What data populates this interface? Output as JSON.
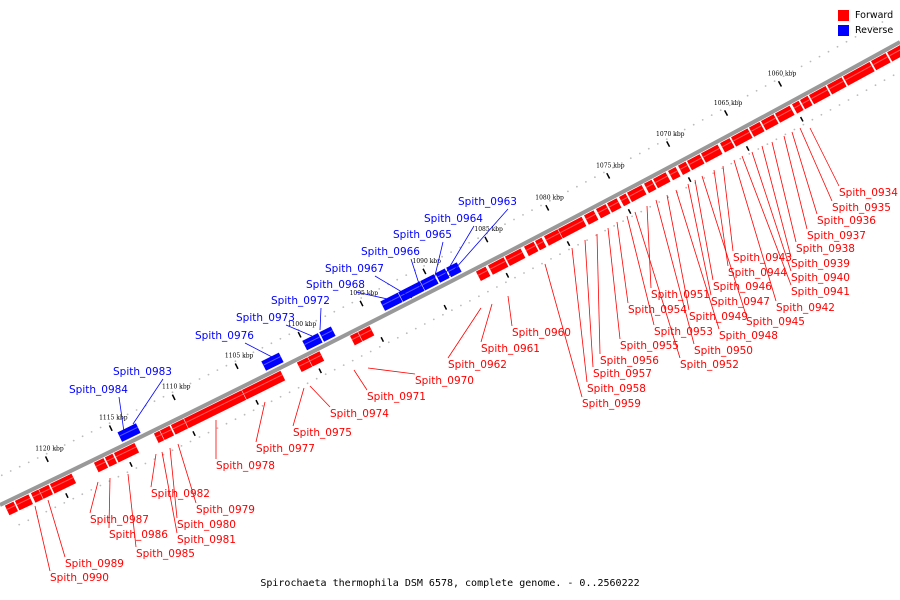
{
  "colors": {
    "forward": "#ff0000",
    "reverse": "#0000ff",
    "backbone": "#999999",
    "tick": "#000000",
    "dot": "#bbbbbb",
    "leader_forward": "#ff0000",
    "leader_reverse": "#0000ff"
  },
  "legend": {
    "forward_label": "Forward",
    "reverse_label": "Reverse"
  },
  "caption": "Spirochaeta thermophila DSM 6578, complete genome. - 0..2560222",
  "axis": {
    "unit": "kbp",
    "ticks": [
      "1060 kbp",
      "1065 kbp",
      "1070 kbp",
      "1075 kbp",
      "1080 kbp",
      "1085 kbp",
      "1090 kbp",
      "1095 kbp",
      "1100 kbp",
      "1105 kbp",
      "1110 kbp",
      "1115 kbp",
      "1120 kbp"
    ]
  },
  "forward_genes": [
    "Spith_0934",
    "Spith_0935",
    "Spith_0936",
    "Spith_0937",
    "Spith_0938",
    "Spith_0939",
    "Spith_0940",
    "Spith_0941",
    "Spith_0942",
    "Spith_0943",
    "Spith_0944",
    "Spith_0945",
    "Spith_0946",
    "Spith_0947",
    "Spith_0948",
    "Spith_0949",
    "Spith_0950",
    "Spith_0951",
    "Spith_0952",
    "Spith_0953",
    "Spith_0954",
    "Spith_0955",
    "Spith_0956",
    "Spith_0957",
    "Spith_0958",
    "Spith_0959",
    "Spith_0960",
    "Spith_0961",
    "Spith_0962",
    "Spith_0970",
    "Spith_0971",
    "Spith_0974",
    "Spith_0975",
    "Spith_0977",
    "Spith_0978",
    "Spith_0979",
    "Spith_0980",
    "Spith_0981",
    "Spith_0982",
    "Spith_0985",
    "Spith_0986",
    "Spith_0987",
    "Spith_0989",
    "Spith_0990"
  ],
  "reverse_genes": [
    "Spith_0963",
    "Spith_0964",
    "Spith_0965",
    "Spith_0966",
    "Spith_0967",
    "Spith_0968",
    "Spith_0972",
    "Spith_0973",
    "Spith_0976",
    "Spith_0983",
    "Spith_0984"
  ]
}
